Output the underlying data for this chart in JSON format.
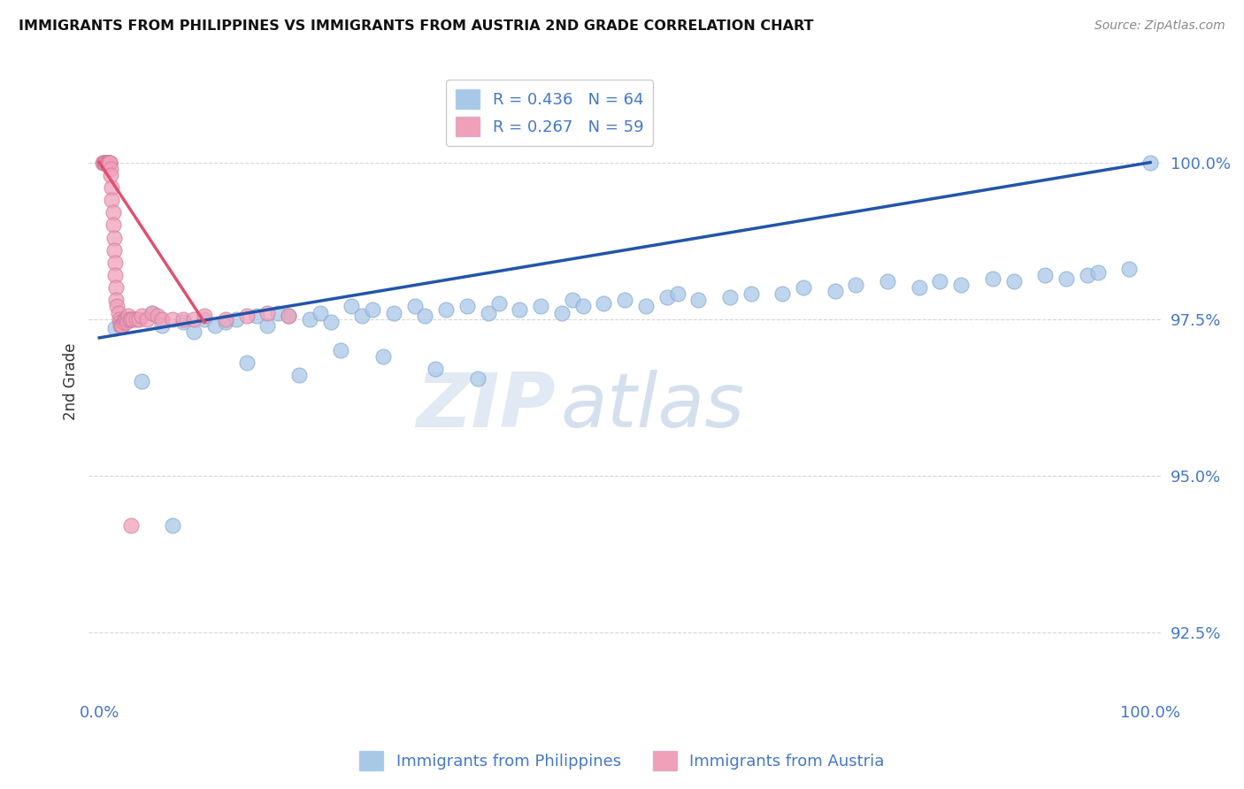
{
  "title": "IMMIGRANTS FROM PHILIPPINES VS IMMIGRANTS FROM AUSTRIA 2ND GRADE CORRELATION CHART",
  "source": "Source: ZipAtlas.com",
  "ylabel": "2nd Grade",
  "legend_r_blue": "R = 0.436",
  "legend_n_blue": "N = 64",
  "legend_r_pink": "R = 0.267",
  "legend_n_pink": "N = 59",
  "legend_label_blue": "Immigrants from Philippines",
  "legend_label_pink": "Immigrants from Austria",
  "blue_scatter_x": [
    1.5,
    3.0,
    5.0,
    6.0,
    8.0,
    9.0,
    10.0,
    11.0,
    12.0,
    13.0,
    15.0,
    16.0,
    17.0,
    18.0,
    20.0,
    21.0,
    22.0,
    24.0,
    25.0,
    26.0,
    28.0,
    30.0,
    31.0,
    33.0,
    35.0,
    37.0,
    38.0,
    40.0,
    42.0,
    44.0,
    45.0,
    46.0,
    48.0,
    50.0,
    52.0,
    54.0,
    55.0,
    57.0,
    60.0,
    62.0,
    65.0,
    67.0,
    70.0,
    72.0,
    75.0,
    78.0,
    80.0,
    82.0,
    85.0,
    87.0,
    90.0,
    92.0,
    94.0,
    95.0,
    98.0,
    100.0,
    4.0,
    7.0,
    14.0,
    19.0,
    23.0,
    27.0,
    32.0,
    36.0
  ],
  "blue_scatter_y": [
    97.35,
    97.5,
    97.6,
    97.4,
    97.45,
    97.3,
    97.5,
    97.4,
    97.45,
    97.5,
    97.55,
    97.4,
    97.6,
    97.55,
    97.5,
    97.6,
    97.45,
    97.7,
    97.55,
    97.65,
    97.6,
    97.7,
    97.55,
    97.65,
    97.7,
    97.6,
    97.75,
    97.65,
    97.7,
    97.6,
    97.8,
    97.7,
    97.75,
    97.8,
    97.7,
    97.85,
    97.9,
    97.8,
    97.85,
    97.9,
    97.9,
    98.0,
    97.95,
    98.05,
    98.1,
    98.0,
    98.1,
    98.05,
    98.15,
    98.1,
    98.2,
    98.15,
    98.2,
    98.25,
    98.3,
    100.0,
    96.5,
    94.2,
    96.8,
    96.6,
    97.0,
    96.9,
    96.7,
    96.55
  ],
  "pink_scatter_x": [
    0.3,
    0.4,
    0.5,
    0.5,
    0.6,
    0.6,
    0.7,
    0.7,
    0.8,
    0.8,
    0.9,
    0.9,
    1.0,
    1.0,
    1.0,
    1.1,
    1.1,
    1.2,
    1.2,
    1.3,
    1.3,
    1.4,
    1.4,
    1.5,
    1.5,
    1.6,
    1.6,
    1.7,
    1.8,
    1.9,
    2.0,
    2.0,
    2.1,
    2.2,
    2.3,
    2.4,
    2.5,
    2.6,
    2.7,
    2.8,
    2.9,
    3.0,
    3.2,
    3.5,
    3.8,
    4.0,
    4.5,
    5.0,
    5.5,
    6.0,
    7.0,
    8.0,
    9.0,
    10.0,
    12.0,
    14.0,
    16.0,
    18.0,
    3.0
  ],
  "pink_scatter_y": [
    100.0,
    100.0,
    100.0,
    100.0,
    100.0,
    100.0,
    100.0,
    100.0,
    100.0,
    100.0,
    100.0,
    100.0,
    100.0,
    100.0,
    100.0,
    99.9,
    99.8,
    99.6,
    99.4,
    99.2,
    99.0,
    98.8,
    98.6,
    98.4,
    98.2,
    98.0,
    97.8,
    97.7,
    97.6,
    97.5,
    97.45,
    97.4,
    97.4,
    97.4,
    97.45,
    97.5,
    97.5,
    97.45,
    97.5,
    97.55,
    97.5,
    97.5,
    97.5,
    97.5,
    97.5,
    97.55,
    97.5,
    97.6,
    97.55,
    97.5,
    97.5,
    97.5,
    97.5,
    97.55,
    97.5,
    97.55,
    97.6,
    97.55,
    94.2
  ],
  "blue_line_x": [
    0,
    100
  ],
  "blue_line_y": [
    97.2,
    100.0
  ],
  "pink_line_x": [
    0,
    10
  ],
  "pink_line_y": [
    100.0,
    97.45
  ],
  "blue_color": "#A8C8E8",
  "pink_color": "#F0A0B8",
  "blue_line_color": "#2255AA",
  "pink_line_color": "#E05070",
  "text_color": "#4477CC",
  "grid_color": "#CCCCCC",
  "watermark_zip": "ZIP",
  "watermark_atlas": "atlas",
  "background_color": "#FFFFFF",
  "yticks": [
    92.5,
    95.0,
    97.5,
    100.0
  ],
  "xticks": [
    0,
    100
  ],
  "ylim": [
    91.5,
    101.5
  ],
  "xlim": [
    0,
    100
  ]
}
